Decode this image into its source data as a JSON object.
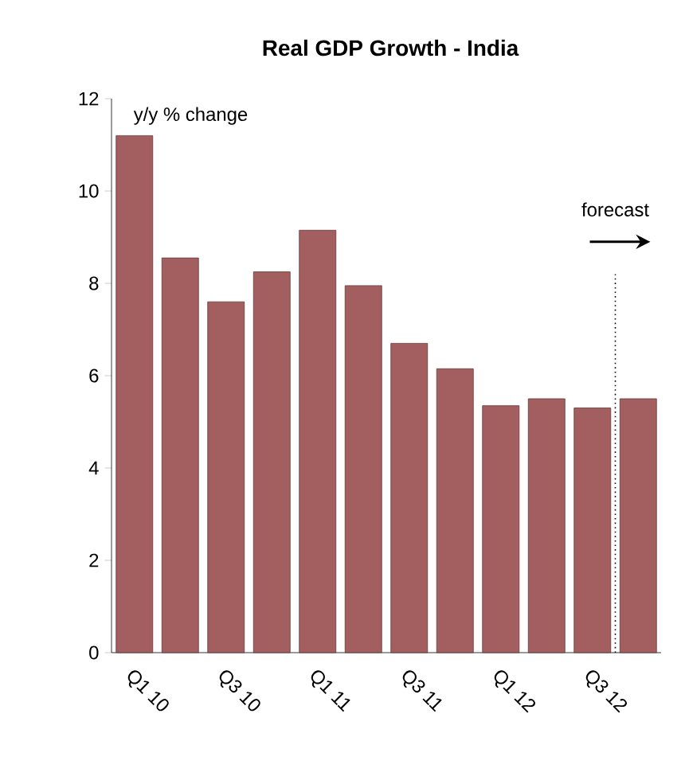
{
  "chart_data": {
    "type": "bar",
    "title": "Real GDP Growth - India",
    "ylabel": "y/y % change",
    "categories": [
      "Q1 10",
      null,
      "Q3 10",
      null,
      "Q1 11",
      null,
      "Q3 11",
      null,
      "Q1 12",
      null,
      "Q3 12",
      null
    ],
    "values": [
      11.2,
      8.55,
      7.6,
      8.25,
      9.15,
      7.95,
      6.7,
      6.15,
      5.35,
      5.5,
      5.3,
      5.5
    ],
    "color": "#a35f5f",
    "ylim": [
      0,
      12
    ],
    "yticks": [
      0,
      2,
      4,
      6,
      8,
      10,
      12
    ],
    "annotations": [
      "forecast"
    ]
  }
}
